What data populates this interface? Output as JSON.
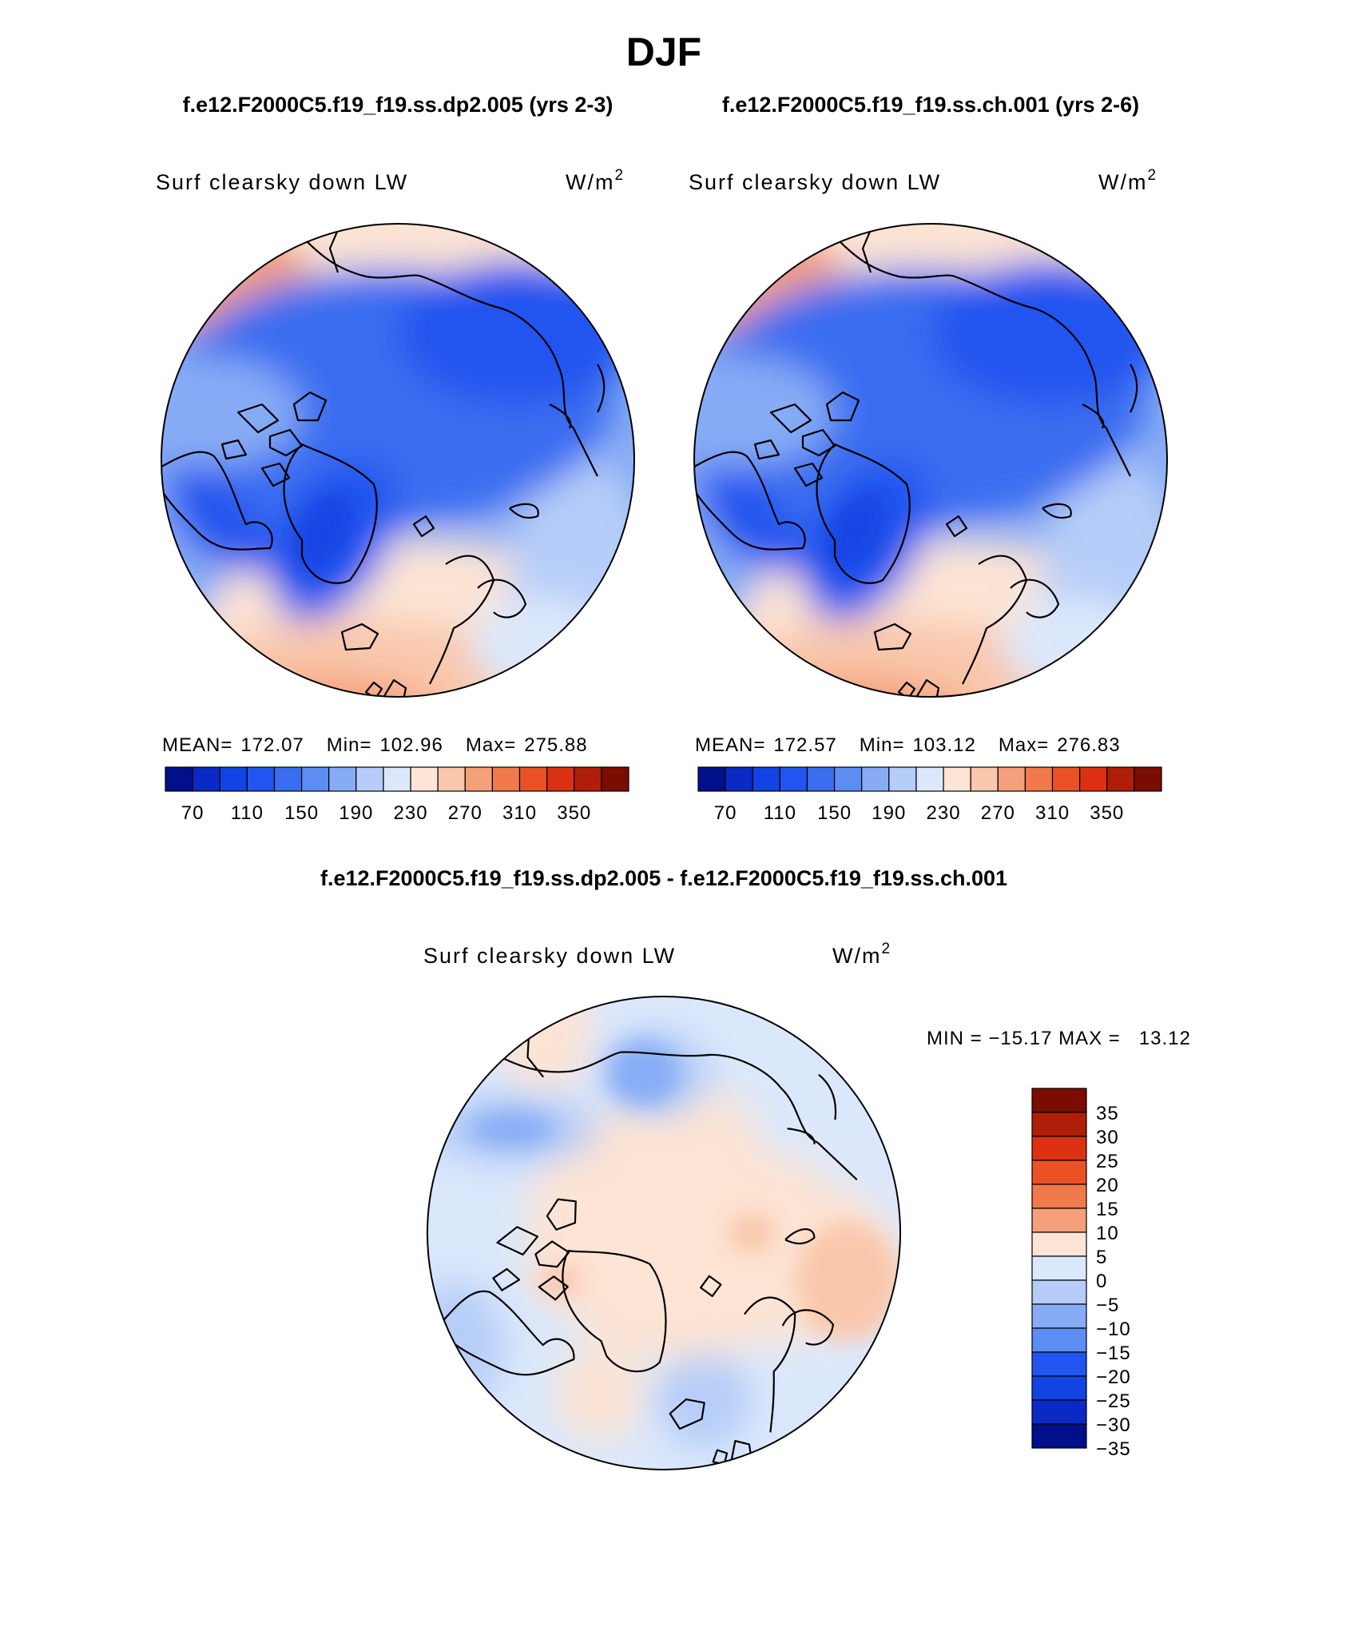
{
  "page": {
    "title": "DJF",
    "subtitle_left": "f.e12.F2000C5.f19_f19.ss.dp2.005 (yrs 2-3)",
    "subtitle_right": "f.e12.F2000C5.f19_f19.ss.ch.001 (yrs 2-6)",
    "diff_title": "f.e12.F2000C5.f19_f19.ss.dp2.005 - f.e12.F2000C5.f19_f19.ss.ch.001"
  },
  "colors": {
    "abs_scale": [
      "#000f8a",
      "#0a2ac6",
      "#1244e3",
      "#2255ef",
      "#3b6df0",
      "#5c8df2",
      "#87acf5",
      "#b5cdf8",
      "#dbe8fb",
      "#fde4d4",
      "#f9c7ac",
      "#f5a07b",
      "#f07a4b",
      "#ea5226",
      "#db3112",
      "#b01e0a",
      "#7b0c02"
    ],
    "diff_scale": [
      "#000f8a",
      "#0a2ac6",
      "#1244e3",
      "#2255ef",
      "#5c8df2",
      "#87acf5",
      "#b5cdf8",
      "#dbe8fb",
      "#fde4d4",
      "#f5a07b",
      "#f07a4b",
      "#ea5226",
      "#db3112",
      "#b01e0a",
      "#7b0c02"
    ]
  },
  "chart_data": [
    {
      "type": "heatmap",
      "projection": "north-polar-stereographic",
      "title": "f.e12.F2000C5.f19_f19.ss.dp2.005 (yrs 2-3)",
      "variable": "Surf clearsky down LW",
      "units": "W/m²",
      "units_base": "W/m",
      "units_exp": "2",
      "stats": {
        "mean_label": "MEAN=",
        "mean": "172.07",
        "min_label": "Min=",
        "min": "102.96",
        "max_label": "Max=",
        "max": "275.88"
      },
      "levels": [
        70,
        90,
        110,
        130,
        150,
        170,
        190,
        210,
        230,
        250,
        270,
        290,
        310,
        330,
        350
      ],
      "tick_labels": [
        "70",
        "110",
        "150",
        "190",
        "230",
        "270",
        "310",
        "350"
      ]
    },
    {
      "type": "heatmap",
      "projection": "north-polar-stereographic",
      "title": "f.e12.F2000C5.f19_f19.ss.ch.001 (yrs 2-6)",
      "variable": "Surf clearsky down LW",
      "units": "W/m²",
      "units_base": "W/m",
      "units_exp": "2",
      "stats": {
        "mean_label": "MEAN=",
        "mean": "172.57",
        "min_label": "Min=",
        "min": "103.12",
        "max_label": "Max=",
        "max": "276.83"
      },
      "levels": [
        70,
        90,
        110,
        130,
        150,
        170,
        190,
        210,
        230,
        250,
        270,
        290,
        310,
        330,
        350
      ],
      "tick_labels": [
        "70",
        "110",
        "150",
        "190",
        "230",
        "270",
        "310",
        "350"
      ]
    },
    {
      "type": "heatmap",
      "projection": "north-polar-stereographic",
      "title": "f.e12.F2000C5.f19_f19.ss.dp2.005 - f.e12.F2000C5.f19_f19.ss.ch.001",
      "variable": "Surf clearsky down LW",
      "units": "W/m²",
      "units_base": "W/m",
      "units_exp": "2",
      "minmax_text": "MIN = −15.17 MAX =   13.12",
      "min": -15.17,
      "max": 13.12,
      "levels": [
        -35,
        -30,
        -25,
        -20,
        -15,
        -10,
        -5,
        0,
        5,
        10,
        15,
        20,
        25,
        30,
        35
      ],
      "tick_labels": [
        "35",
        "30",
        "25",
        "20",
        "15",
        "10",
        "5",
        "0",
        "−5",
        "−10",
        "−15",
        "−20",
        "−25",
        "−30",
        "−35"
      ]
    }
  ]
}
